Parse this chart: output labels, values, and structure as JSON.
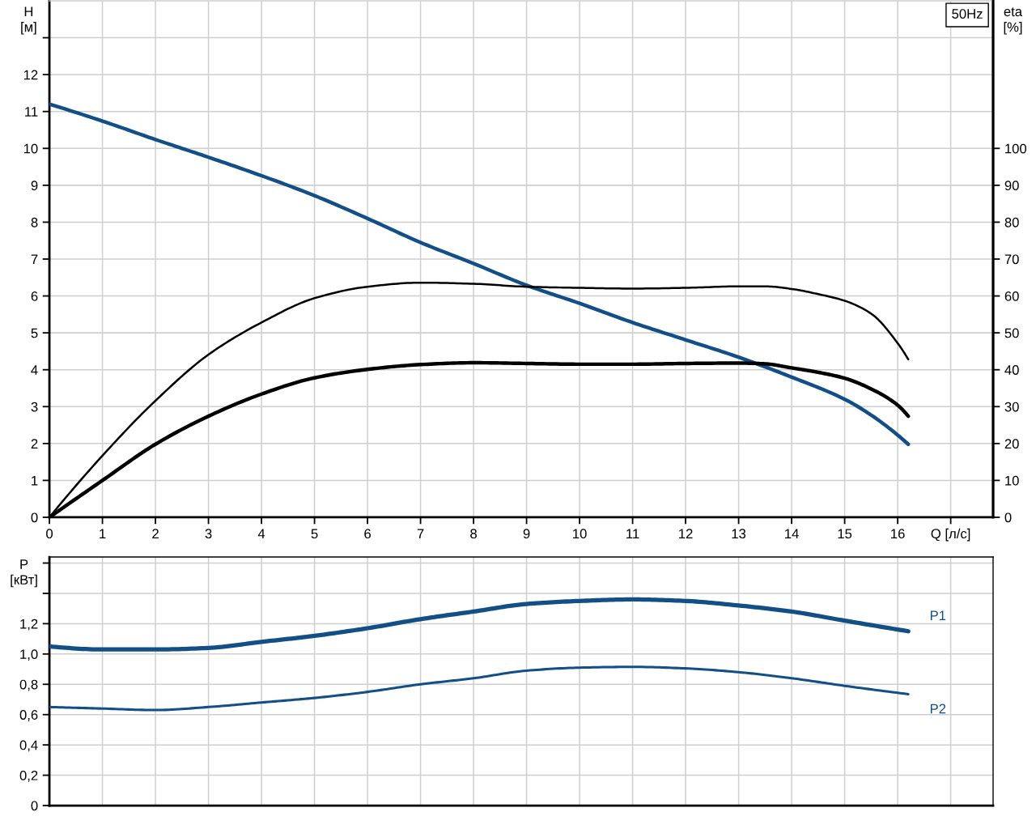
{
  "chart_data": [
    {
      "type": "line",
      "title": "50Hz",
      "ylabel": "H\n[м]",
      "y2label": "eta\n[%]",
      "xlim": [
        0,
        17.8
      ],
      "xticks": [
        0,
        1,
        2,
        3,
        4,
        5,
        6,
        7,
        8,
        9,
        10,
        11,
        12,
        13,
        14,
        15,
        16,
        {
          "value": 17,
          "label": "Q [л/с]"
        }
      ],
      "ylim": [
        0,
        14
      ],
      "yticks": [
        0,
        1,
        2,
        3,
        4,
        5,
        6,
        7,
        8,
        9,
        10,
        11,
        12,
        {
          "value": 13,
          "label": null
        }
      ],
      "y2lim": [
        0,
        140
      ],
      "y2ticks": [
        0,
        10,
        20,
        30,
        40,
        50,
        60,
        70,
        80,
        90,
        100
      ],
      "grid": true,
      "series": [
        {
          "color": "#134f87",
          "x": [
            0,
            1,
            2,
            3,
            4,
            5,
            6,
            7,
            8,
            9,
            10,
            11,
            12,
            13,
            14,
            15,
            15.5,
            16.2
          ],
          "values": [
            11.2,
            10.74,
            10.24,
            9.76,
            9.26,
            8.72,
            8.1,
            7.45,
            6.88,
            6.29,
            5.8,
            5.28,
            4.81,
            4.34,
            3.8,
            3.2,
            2.77,
            1.98
          ]
        },
        {
          "color": "#000000",
          "axis": "y2",
          "x": [
            0,
            1,
            2,
            3,
            4,
            5,
            6,
            7,
            8,
            9,
            10,
            11,
            12,
            13,
            13.5,
            14,
            14.5,
            15,
            15.5,
            16,
            16.2
          ],
          "values": [
            0,
            16.7,
            31.6,
            44.1,
            52.8,
            59.4,
            62.5,
            63.6,
            63.3,
            62.5,
            62.2,
            62.0,
            62.2,
            62.6,
            62.6,
            61.9,
            60.5,
            58.7,
            55.2,
            47.2,
            42.8
          ]
        },
        {
          "color": "#000000",
          "axis": "y2",
          "x": [
            0,
            1,
            2,
            3,
            4,
            5,
            6,
            7,
            8,
            9,
            10,
            11,
            12,
            13,
            13.5,
            14,
            14.5,
            15,
            15.5,
            16,
            16.2
          ],
          "values": [
            0,
            10.0,
            19.8,
            27.4,
            33.4,
            37.8,
            40.1,
            41.4,
            41.9,
            41.7,
            41.5,
            41.5,
            41.7,
            41.8,
            41.6,
            40.5,
            39.3,
            37.7,
            34.8,
            30.4,
            27.4
          ]
        }
      ]
    },
    {
      "type": "line",
      "ylabel": "P\n[кВт]",
      "xlim": [
        0,
        17.8
      ],
      "xticks": [
        0,
        1,
        2,
        3,
        4,
        5,
        6,
        7,
        8,
        9,
        10,
        11,
        12,
        13,
        14,
        15,
        16,
        17
      ],
      "ylim": [
        0,
        1.64
      ],
      "yticks": [
        0,
        {
          "value": 0.2,
          "label": "0,2"
        },
        {
          "value": 0.4,
          "label": "0,4"
        },
        {
          "value": 0.6,
          "label": "0,6"
        },
        {
          "value": 0.8,
          "label": "0,8"
        },
        {
          "value": 1.0,
          "label": "1,0"
        },
        {
          "value": 1.2,
          "label": "1,2"
        },
        {
          "value": 1.4,
          "label": null
        },
        {
          "value": 1.6,
          "label": null
        }
      ],
      "grid": true,
      "tick_labels": "y",
      "x": [
        0,
        1,
        2,
        3,
        4,
        5,
        6,
        7,
        8,
        9,
        10,
        11,
        12,
        13,
        14,
        15,
        16.2
      ],
      "series": [
        {
          "name": "P1",
          "color": "#134f87",
          "values": [
            1.05,
            1.03,
            1.03,
            1.04,
            1.08,
            1.12,
            1.17,
            1.23,
            1.28,
            1.33,
            1.35,
            1.36,
            1.35,
            1.32,
            1.28,
            1.22,
            1.15
          ]
        },
        {
          "name": "P2",
          "color": "#134f87",
          "values": [
            0.65,
            0.64,
            0.63,
            0.65,
            0.68,
            0.71,
            0.75,
            0.8,
            0.84,
            0.89,
            0.91,
            0.915,
            0.905,
            0.88,
            0.84,
            0.79,
            0.735
          ]
        }
      ]
    }
  ]
}
